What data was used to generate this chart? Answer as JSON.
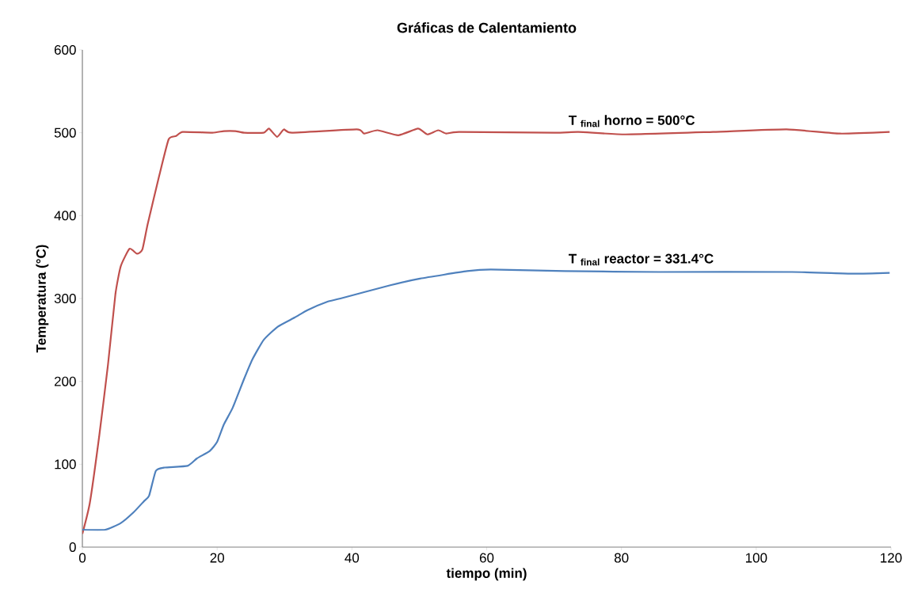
{
  "chart_data": {
    "type": "line",
    "title": "Gráficas de Calentamiento",
    "xlabel": "tiempo (min)",
    "ylabel": "Temperatura (°C)",
    "xlim": [
      0,
      120
    ],
    "ylim": [
      0,
      600
    ],
    "xticks": [
      0,
      20,
      40,
      60,
      80,
      100,
      120
    ],
    "yticks": [
      0,
      100,
      200,
      300,
      400,
      500,
      600
    ],
    "grid": false,
    "marker": "none",
    "line_style": "solid",
    "series": [
      {
        "color": "#c0504d",
        "x": [
          0,
          1.1,
          2.5,
          3.8,
          4.9,
          5.7,
          7.0,
          8.1,
          8.9,
          9.7,
          11.4,
          12.8,
          13.9,
          14.9,
          19.3,
          21,
          22.7,
          24,
          26.9,
          27.7,
          28.9,
          29.9,
          31.1,
          40.7,
          41.8,
          43.8,
          46.9,
          49.8,
          51.2,
          52.8,
          54,
          55.9,
          70,
          73.6,
          80.6,
          93.6,
          104.5,
          112.4,
          119.8
        ],
        "values": [
          16,
          53,
          134,
          220,
          305,
          339,
          360,
          354,
          359,
          390,
          448,
          492,
          496,
          501,
          500,
          502,
          502,
          500,
          500,
          505,
          495,
          504,
          500,
          504,
          499,
          503,
          497,
          505,
          498,
          503,
          499,
          501,
          500,
          501,
          498,
          501,
          504,
          499,
          501
        ]
      },
      {
        "color": "#4f81bd",
        "x": [
          0,
          3.4,
          5.7,
          7.6,
          9.1,
          9.9,
          10.9,
          12.2,
          15.6,
          17.0,
          18.9,
          20,
          21,
          22.3,
          24,
          25.2,
          26.9,
          29,
          31.5,
          33.4,
          36.3,
          38.3,
          45.7,
          50.1,
          57.1,
          60.6,
          71.6,
          85.7,
          105.3,
          114.3,
          119.8
        ],
        "values": [
          21,
          21,
          29,
          42,
          55,
          62,
          92,
          96,
          98,
          107,
          116,
          127,
          148,
          168,
          203,
          226,
          250,
          266,
          277,
          286,
          296,
          300,
          316,
          324,
          333,
          335,
          333,
          332,
          332,
          330,
          331
        ]
      }
    ],
    "annotations": [
      {
        "text": "T $_{final}$ horno = 500°C",
        "x": 72,
        "y": 500
      },
      {
        "text": "T $_{final}$ reactor = 331.4°C",
        "x": 72,
        "y": 333
      }
    ]
  }
}
